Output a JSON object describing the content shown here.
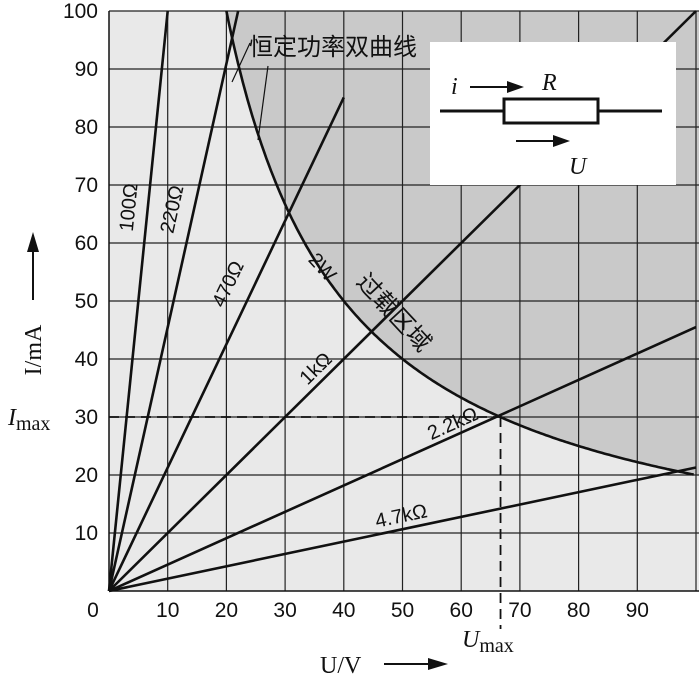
{
  "chart_data": {
    "type": "line",
    "xlim": [
      0,
      100
    ],
    "ylim": [
      0,
      100
    ],
    "x_ticks": [
      "0",
      "10",
      "20",
      "30",
      "40",
      "50",
      "60",
      "70",
      "80",
      "90"
    ],
    "y_ticks": [
      "10",
      "20",
      "30",
      "40",
      "50",
      "60",
      "70",
      "80",
      "90",
      "100"
    ],
    "xlabel": "U/V",
    "ylabel": "I/mA",
    "grid": true,
    "series": [
      {
        "name": "100Ω",
        "ohms": 100,
        "x": [
          0,
          10
        ],
        "y": [
          0,
          100
        ]
      },
      {
        "name": "220Ω",
        "ohms": 220,
        "x": [
          0,
          22
        ],
        "y": [
          0,
          100
        ]
      },
      {
        "name": "470Ω",
        "ohms": 470,
        "x": [
          0,
          40
        ],
        "y": [
          0,
          85.1
        ]
      },
      {
        "name": "1kΩ",
        "ohms": 1000,
        "x": [
          0,
          100
        ],
        "y": [
          0,
          100
        ]
      },
      {
        "name": "2.2kΩ",
        "ohms": 2200,
        "x": [
          0,
          100
        ],
        "y": [
          0,
          45.5
        ]
      },
      {
        "name": "4.7kΩ",
        "ohms": 4700,
        "x": [
          0,
          100
        ],
        "y": [
          0,
          21.3
        ]
      }
    ],
    "power_curve": {
      "label": "恒定功率双曲线",
      "series_label": "2W",
      "watts": 2,
      "x_range": [
        20,
        100
      ]
    },
    "region_label": "过载区域",
    "markers": {
      "imax_value": 30,
      "umax_value": 66.7,
      "imax_label": "I",
      "imax_sub": "max",
      "umax_label": "U",
      "umax_sub": "max"
    },
    "colors": {
      "overload": "#c9c9c9",
      "safe": "#e9e9e9",
      "lines": "#111111",
      "grid": "#222222"
    },
    "inset": {
      "current_label": "i",
      "resistor_label": "R",
      "voltage_label": "U"
    }
  }
}
